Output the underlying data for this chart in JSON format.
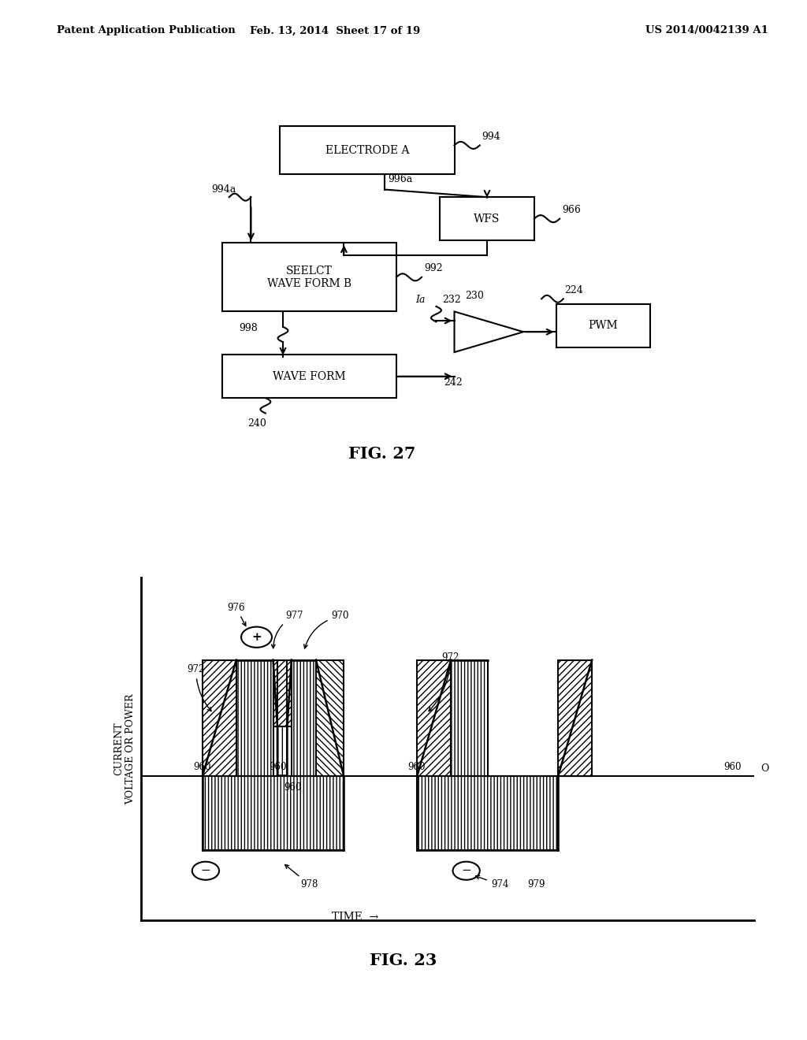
{
  "header_left": "Patent Application Publication",
  "header_mid": "Feb. 13, 2014  Sheet 17 of 19",
  "header_right": "US 2014/0042139 A1",
  "fig27_title": "FIG. 27",
  "fig23_title": "FIG. 23",
  "bg_color": "#ffffff"
}
